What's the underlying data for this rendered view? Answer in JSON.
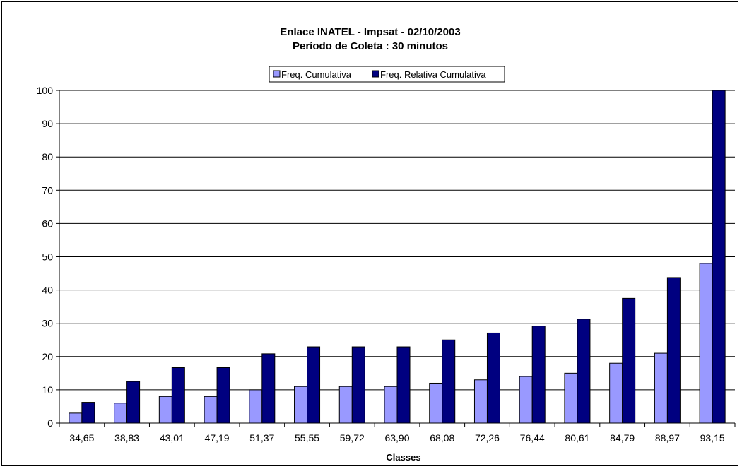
{
  "chart_data": {
    "type": "bar",
    "title": "Enlace INATEL - Impsat - 02/10/2003",
    "subtitle": "Período de Coleta : 30 minutos",
    "xlabel": "Classes",
    "ylabel": "",
    "ylim": [
      0,
      100
    ],
    "yticks": [
      0,
      10,
      20,
      30,
      40,
      50,
      60,
      70,
      80,
      90,
      100
    ],
    "grid": true,
    "legend_position": "top-center",
    "categories": [
      "34,65",
      "38,83",
      "43,01",
      "47,19",
      "51,37",
      "55,55",
      "59,72",
      "63,90",
      "68,08",
      "72,26",
      "76,44",
      "80,61",
      "84,79",
      "88,97",
      "93,15"
    ],
    "series": [
      {
        "name": "Freq. Cumulativa",
        "color": "#9999ff",
        "values": [
          3,
          6,
          8,
          8,
          10,
          11,
          11,
          11,
          12,
          13,
          14,
          15,
          18,
          21,
          48
        ]
      },
      {
        "name": "Freq. Relativa Cumulativa",
        "color": "#000080",
        "values": [
          6.25,
          12.5,
          16.67,
          16.67,
          20.83,
          22.92,
          22.92,
          22.92,
          25,
          27.08,
          29.17,
          31.25,
          37.5,
          43.75,
          100
        ]
      }
    ]
  }
}
